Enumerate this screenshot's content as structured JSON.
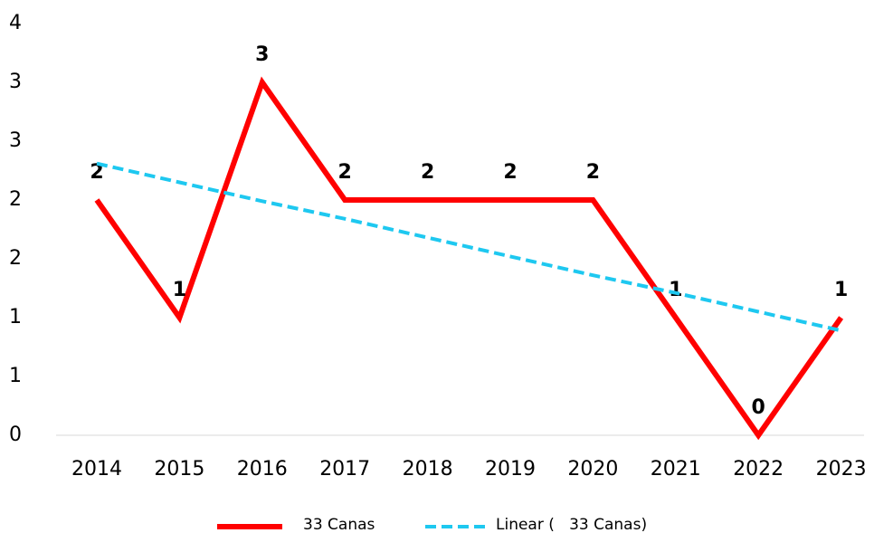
{
  "chart_data": {
    "type": "line",
    "categories": [
      "2014",
      "2015",
      "2016",
      "2017",
      "2018",
      "2019",
      "2020",
      "2021",
      "2022",
      "2023"
    ],
    "series": [
      {
        "name": "33 Canas",
        "color": "#ff0000",
        "values": [
          2,
          1,
          3,
          2,
          2,
          2,
          2,
          1,
          0,
          1
        ],
        "data_labels": true
      },
      {
        "name": "Linear (   33 Canas)",
        "color": "#1ec8f0",
        "dashed": true,
        "values": [
          2.31,
          2.15,
          1.99,
          1.84,
          1.68,
          1.52,
          1.36,
          1.21,
          1.05,
          0.89
        ]
      }
    ],
    "ylim": [
      0,
      3.5
    ],
    "yticks": [
      0,
      {
        "value": 0.5,
        "label": "1"
      },
      1,
      {
        "value": 1.5,
        "label": "2"
      },
      2,
      {
        "value": 2.5,
        "label": "3"
      },
      3,
      {
        "value": 3.5,
        "label": "4"
      }
    ],
    "grid": false,
    "legend": "bottom"
  }
}
